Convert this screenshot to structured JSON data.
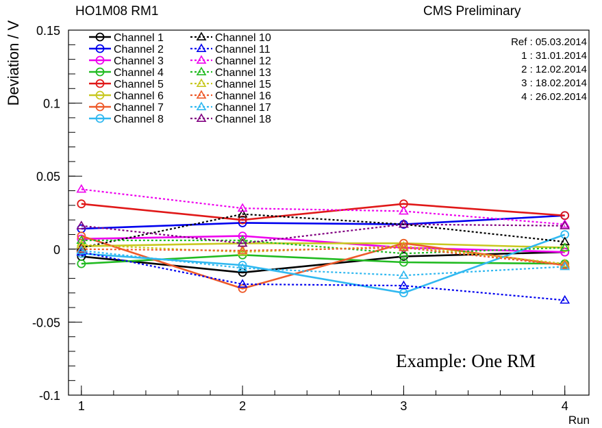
{
  "header": {
    "left_title": "HO1M08 RM1",
    "right_title": "CMS Preliminary"
  },
  "ref_dates": [
    "Ref : 05.03.2014",
    "1 : 31.01.2014",
    "2 : 12.02.2014",
    "3 : 18.02.2014",
    "4 : 26.02.2014"
  ],
  "annotation": "Example: One RM",
  "chart_data": {
    "type": "line",
    "title": "HO1M08 RM1",
    "xlabel": "Run",
    "ylabel": "Deviation / V",
    "xlim": [
      0.92,
      4.15
    ],
    "ylim": [
      -0.1,
      0.15
    ],
    "x": [
      1,
      2,
      3,
      4
    ],
    "x_ticks": [
      1,
      2,
      3,
      4
    ],
    "x_tick_labels": [
      "1",
      "2",
      "3",
      "4"
    ],
    "y_ticks": [
      -0.1,
      -0.05,
      0,
      0.05,
      0.1,
      0.15
    ],
    "y_tick_labels": [
      "-0.1",
      "-0.05",
      "0",
      "0.05",
      "0.1",
      "0.15"
    ],
    "series": [
      {
        "name": "Channel 1",
        "color": "#000000",
        "marker": "circle",
        "style": "solid",
        "values": [
          -0.005,
          -0.016,
          -0.005,
          -0.002
        ]
      },
      {
        "name": "Channel 2",
        "color": "#0000ee",
        "marker": "circle",
        "style": "solid",
        "values": [
          0.014,
          0.018,
          0.017,
          0.023
        ]
      },
      {
        "name": "Channel 3",
        "color": "#ee00ee",
        "marker": "circle",
        "style": "solid",
        "values": [
          0.007,
          0.009,
          0.001,
          -0.002
        ]
      },
      {
        "name": "Channel 4",
        "color": "#22bb22",
        "marker": "circle",
        "style": "solid",
        "values": [
          -0.01,
          -0.004,
          -0.009,
          -0.01
        ]
      },
      {
        "name": "Channel 5",
        "color": "#e01818",
        "marker": "circle",
        "style": "solid",
        "values": [
          0.031,
          0.02,
          0.031,
          0.023
        ]
      },
      {
        "name": "Channel 6",
        "color": "#c8c820",
        "marker": "circle",
        "style": "solid",
        "values": [
          0.002,
          0.004,
          0.004,
          0.001
        ]
      },
      {
        "name": "Channel 7",
        "color": "#ee5a2a",
        "marker": "circle",
        "style": "solid",
        "values": [
          0.009,
          -0.027,
          0.004,
          -0.011
        ]
      },
      {
        "name": "Channel 8",
        "color": "#30b8f0",
        "marker": "circle",
        "style": "solid",
        "values": [
          -0.003,
          -0.011,
          -0.03,
          0.01
        ]
      },
      {
        "name": "Channel 10",
        "color": "#000000",
        "marker": "triangle",
        "style": "dotted",
        "values": [
          0.001,
          0.024,
          0.017,
          0.005
        ]
      },
      {
        "name": "Channel 11",
        "color": "#0000ee",
        "marker": "triangle",
        "style": "dotted",
        "values": [
          -0.002,
          -0.024,
          -0.025,
          -0.035
        ]
      },
      {
        "name": "Channel 12",
        "color": "#ee00ee",
        "marker": "triangle",
        "style": "dotted",
        "values": [
          0.041,
          0.028,
          0.026,
          0.017
        ]
      },
      {
        "name": "Channel 13",
        "color": "#22bb22",
        "marker": "triangle",
        "style": "dotted",
        "values": [
          0.006,
          0.006,
          -0.003,
          0.001
        ]
      },
      {
        "name": "Channel 15",
        "color": "#c8c820",
        "marker": "triangle",
        "style": "dotted",
        "values": [
          0.003,
          -0.002,
          0.002,
          -0.01
        ]
      },
      {
        "name": "Channel 16",
        "color": "#ee5a2a",
        "marker": "triangle",
        "style": "dotted",
        "values": [
          0.0,
          -0.001,
          0.001,
          -0.011
        ]
      },
      {
        "name": "Channel 17",
        "color": "#30b8f0",
        "marker": "triangle",
        "style": "dotted",
        "values": [
          -0.001,
          -0.013,
          -0.018,
          -0.012
        ]
      },
      {
        "name": "Channel 18",
        "color": "#800080",
        "marker": "triangle",
        "style": "dotted",
        "values": [
          0.016,
          0.004,
          0.017,
          0.016
        ]
      }
    ]
  }
}
